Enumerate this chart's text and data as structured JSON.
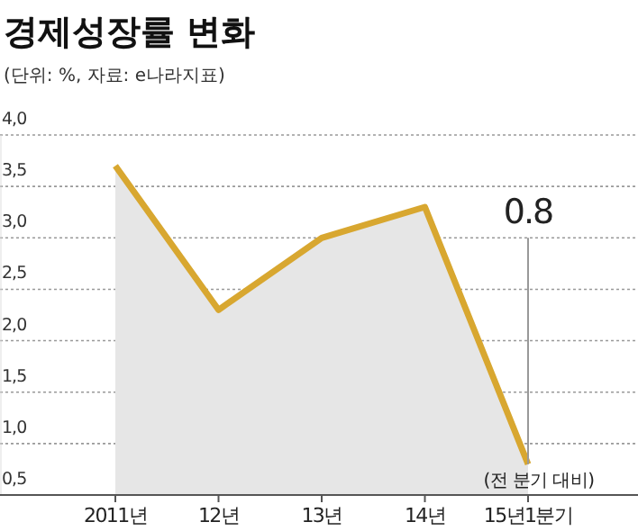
{
  "chart_data": {
    "type": "area",
    "title": "경제성장률 변화",
    "subtitle": "(단위: %, 자료: e나라지표)",
    "categories": [
      "2011년",
      "12년",
      "13년",
      "14년",
      "15년1분기"
    ],
    "series": [
      {
        "color": "#d8a730",
        "values": [
          3.7,
          2.3,
          3.0,
          3.3,
          0.8
        ],
        "value_labels": [
          null,
          null,
          null,
          null,
          "0.8"
        ]
      }
    ],
    "annotations": [
      {
        "text": "(전 분기 대비)",
        "x": "15년1분기",
        "y": 0.8
      }
    ],
    "ylim": [
      0.5,
      4.0
    ],
    "yticks": [
      {
        "value": 0.5,
        "label": "0,5"
      },
      {
        "value": 1.0,
        "label": "1,0"
      },
      {
        "value": 1.5,
        "label": "1,5"
      },
      {
        "value": 2.0,
        "label": "2,0"
      },
      {
        "value": 2.5,
        "label": "2,5"
      },
      {
        "value": 3.0,
        "label": "3,0"
      },
      {
        "value": 3.5,
        "label": "3,5"
      },
      {
        "value": 4.0,
        "label": "4,0"
      }
    ],
    "grid": "y",
    "marker": "none",
    "line_style": "solid"
  }
}
